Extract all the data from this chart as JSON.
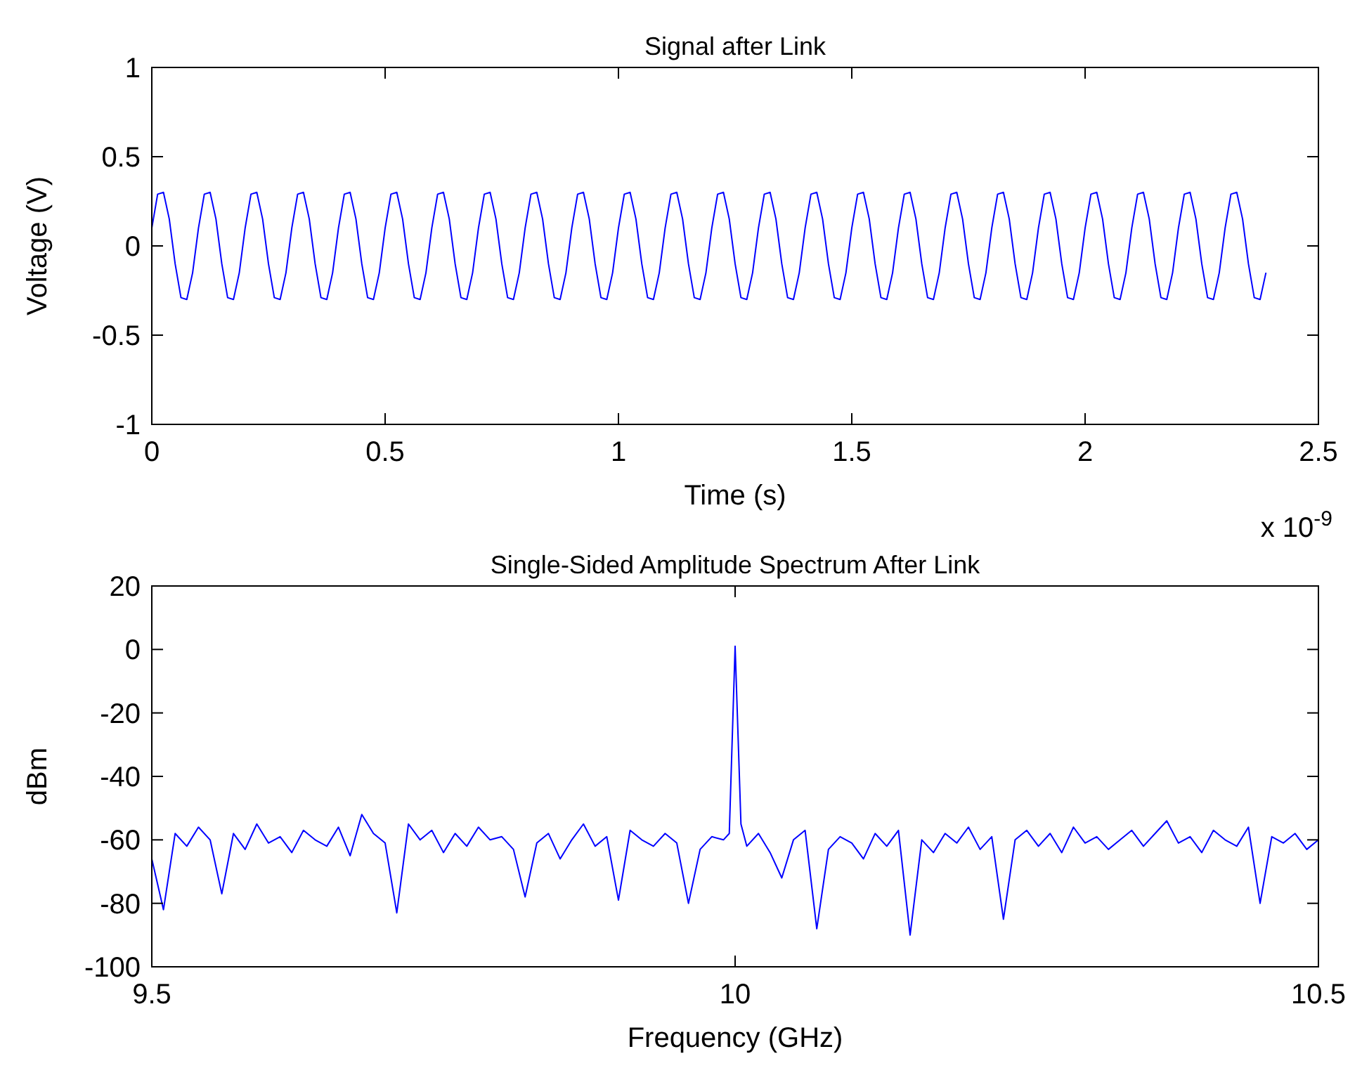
{
  "chart_data": [
    {
      "type": "line",
      "title": "Signal after Link",
      "xlabel": "Time (s)",
      "ylabel": "Voltage (V)",
      "annotations": [
        "x 10$^{-9}$"
      ],
      "x": [
        0,
        0.0125,
        0.025,
        0.0375,
        0.05,
        0.0625,
        0.075,
        0.0875,
        0.1,
        0.1125,
        0.125,
        0.1375,
        0.15,
        0.1625,
        0.175,
        0.1875,
        0.2,
        0.2125,
        0.225,
        0.2375,
        0.25,
        0.2625,
        0.275,
        0.2875,
        0.3,
        0.3125,
        0.325,
        0.3375,
        0.35,
        0.3625,
        0.375,
        0.3875,
        0.4,
        0.4125,
        0.425,
        0.4375,
        0.45,
        0.4625,
        0.475,
        0.4875,
        0.5,
        0.5125,
        0.525,
        0.5375,
        0.55,
        0.5625,
        0.575,
        0.5875,
        0.6,
        0.6125,
        0.625,
        0.6375,
        0.65,
        0.6625,
        0.675,
        0.6875,
        0.7,
        0.7125,
        0.725,
        0.7375,
        0.75,
        0.7625,
        0.775,
        0.7875,
        0.8,
        0.8125,
        0.825,
        0.8375,
        0.85,
        0.8625,
        0.875,
        0.8875,
        0.9,
        0.9125,
        0.925,
        0.9375,
        0.95,
        0.9625,
        0.975,
        0.9875,
        1,
        1.0125,
        1.025,
        1.0375,
        1.05,
        1.0625,
        1.075,
        1.0875,
        1.1,
        1.1125,
        1.125,
        1.1375,
        1.15,
        1.1625,
        1.175,
        1.1875,
        1.2,
        1.2125,
        1.225,
        1.2375,
        1.25,
        1.2625,
        1.275,
        1.2875,
        1.3,
        1.3125,
        1.325,
        1.3375,
        1.35,
        1.3625,
        1.375,
        1.3875,
        1.4,
        1.4125,
        1.425,
        1.4375,
        1.45,
        1.4625,
        1.475,
        1.4875,
        1.5,
        1.5125,
        1.525,
        1.5375,
        1.55,
        1.5625,
        1.575,
        1.5875,
        1.6,
        1.6125,
        1.625,
        1.6375,
        1.65,
        1.6625,
        1.675,
        1.6875,
        1.7,
        1.7125,
        1.725,
        1.7375,
        1.75,
        1.7625,
        1.775,
        1.7875,
        1.8,
        1.8125,
        1.825,
        1.8375,
        1.85,
        1.8625,
        1.875,
        1.8875,
        1.9,
        1.9125,
        1.925,
        1.9375,
        1.95,
        1.9625,
        1.975,
        1.9875,
        2,
        2.0125,
        2.025,
        2.0375,
        2.05,
        2.0625,
        2.075,
        2.0875,
        2.1,
        2.1125,
        2.125,
        2.1375,
        2.15,
        2.1625,
        2.175,
        2.1875,
        2.2,
        2.2125,
        2.225,
        2.2375,
        2.25,
        2.2625,
        2.275,
        2.2875,
        2.3,
        2.3125,
        2.325,
        2.3375,
        2.35,
        2.3625,
        2.375,
        2.3875
      ],
      "series": [
        {
          "color": "#0000ff",
          "values": [
            0.1,
            0.29,
            0.3,
            0.15,
            -0.1,
            -0.29,
            -0.3,
            -0.15,
            0.1,
            0.29,
            0.3,
            0.15,
            -0.1,
            -0.29,
            -0.3,
            -0.15,
            0.1,
            0.29,
            0.3,
            0.15,
            -0.1,
            -0.29,
            -0.3,
            -0.15,
            0.1,
            0.29,
            0.3,
            0.15,
            -0.1,
            -0.29,
            -0.3,
            -0.15,
            0.1,
            0.29,
            0.3,
            0.15,
            -0.1,
            -0.29,
            -0.3,
            -0.15,
            0.1,
            0.29,
            0.3,
            0.15,
            -0.1,
            -0.29,
            -0.3,
            -0.15,
            0.1,
            0.29,
            0.3,
            0.15,
            -0.1,
            -0.29,
            -0.3,
            -0.15,
            0.1,
            0.29,
            0.3,
            0.15,
            -0.1,
            -0.29,
            -0.3,
            -0.15,
            0.1,
            0.29,
            0.3,
            0.15,
            -0.1,
            -0.29,
            -0.3,
            -0.15,
            0.1,
            0.29,
            0.3,
            0.15,
            -0.1,
            -0.29,
            -0.3,
            -0.15,
            0.1,
            0.29,
            0.3,
            0.15,
            -0.1,
            -0.29,
            -0.3,
            -0.15,
            0.1,
            0.29,
            0.3,
            0.15,
            -0.1,
            -0.29,
            -0.3,
            -0.15,
            0.1,
            0.29,
            0.3,
            0.15,
            -0.1,
            -0.29,
            -0.3,
            -0.15,
            0.1,
            0.29,
            0.3,
            0.15,
            -0.1,
            -0.29,
            -0.3,
            -0.15,
            0.1,
            0.29,
            0.3,
            0.15,
            -0.1,
            -0.29,
            -0.3,
            -0.15,
            0.1,
            0.29,
            0.3,
            0.15,
            -0.1,
            -0.29,
            -0.3,
            -0.15,
            0.1,
            0.29,
            0.3,
            0.15,
            -0.1,
            -0.29,
            -0.3,
            -0.15,
            0.1,
            0.29,
            0.3,
            0.15,
            -0.1,
            -0.29,
            -0.3,
            -0.15,
            0.1,
            0.29,
            0.3,
            0.15,
            -0.1,
            -0.29,
            -0.3,
            -0.15,
            0.1,
            0.29,
            0.3,
            0.15,
            -0.1,
            -0.29,
            -0.3,
            -0.15,
            0.1,
            0.29,
            0.3,
            0.15,
            -0.1,
            -0.29,
            -0.3,
            -0.15,
            0.1,
            0.29,
            0.3,
            0.15,
            -0.1,
            -0.29,
            -0.3,
            -0.15,
            0.1,
            0.29,
            0.3,
            0.15,
            -0.1,
            -0.29,
            -0.3,
            -0.15,
            0.1,
            0.29,
            0.3,
            0.15,
            -0.1,
            -0.29,
            -0.3,
            -0.15
          ]
        }
      ],
      "xlim": [
        0,
        2.5
      ],
      "ylim": [
        -1,
        1
      ],
      "xticks": [
        0,
        0.5,
        1,
        1.5,
        2,
        2.5
      ],
      "yticks": [
        -1,
        -0.5,
        0,
        0.5,
        1
      ]
    },
    {
      "type": "line",
      "title": "Single-Sided Amplitude Spectrum After Link",
      "xlabel": "Frequency (GHz)",
      "ylabel": "dBm",
      "x": [
        9.5,
        9.51,
        9.52,
        9.53,
        9.54,
        9.55,
        9.56,
        9.57,
        9.58,
        9.59,
        9.6,
        9.61,
        9.62,
        9.63,
        9.64,
        9.65,
        9.66,
        9.67,
        9.68,
        9.69,
        9.7,
        9.71,
        9.72,
        9.73,
        9.74,
        9.75,
        9.76,
        9.77,
        9.78,
        9.79,
        9.8,
        9.81,
        9.82,
        9.83,
        9.84,
        9.85,
        9.86,
        9.87,
        9.88,
        9.89,
        9.9,
        9.91,
        9.92,
        9.93,
        9.94,
        9.95,
        9.96,
        9.97,
        9.98,
        9.99,
        9.995,
        10,
        10.005,
        10.01,
        10.02,
        10.03,
        10.04,
        10.05,
        10.06,
        10.07,
        10.08,
        10.09,
        10.1,
        10.11,
        10.12,
        10.13,
        10.14,
        10.15,
        10.16,
        10.17,
        10.18,
        10.19,
        10.2,
        10.21,
        10.22,
        10.23,
        10.24,
        10.25,
        10.26,
        10.27,
        10.28,
        10.29,
        10.3,
        10.31,
        10.32,
        10.33,
        10.34,
        10.35,
        10.36,
        10.37,
        10.38,
        10.39,
        10.4,
        10.41,
        10.42,
        10.43,
        10.44,
        10.45,
        10.46,
        10.47,
        10.48,
        10.49,
        10.5
      ],
      "series": [
        {
          "color": "#0000ff",
          "values": [
            -66,
            -82,
            -58,
            -62,
            -56,
            -60,
            -77,
            -58,
            -63,
            -55,
            -61,
            -59,
            -64,
            -57,
            -60,
            -62,
            -56,
            -65,
            -52,
            -58,
            -61,
            -83,
            -55,
            -60,
            -57,
            -64,
            -58,
            -62,
            -56,
            -60,
            -59,
            -63,
            -78,
            -61,
            -58,
            -66,
            -60,
            -55,
            -62,
            -59,
            -79,
            -57,
            -60,
            -62,
            -58,
            -61,
            -80,
            -63,
            -59,
            -60,
            -58,
            1,
            -55,
            -62,
            -58,
            -64,
            -72,
            -60,
            -57,
            -88,
            -63,
            -59,
            -61,
            -66,
            -58,
            -62,
            -57,
            -90,
            -60,
            -64,
            -58,
            -61,
            -56,
            -63,
            -59,
            -85,
            -60,
            -57,
            -62,
            -58,
            -64,
            -56,
            -61,
            -59,
            -63,
            -60,
            -57,
            -62,
            -58,
            -54,
            -61,
            -59,
            -64,
            -57,
            -60,
            -62,
            -56,
            -80,
            -59,
            -61,
            -58,
            -63,
            -60
          ]
        }
      ],
      "xlim": [
        9.5,
        10.5
      ],
      "ylim": [
        -100,
        20
      ],
      "xticks": [
        9.5,
        10,
        10.5
      ],
      "yticks": [
        -100,
        -80,
        -60,
        -40,
        -20,
        0,
        20
      ]
    }
  ]
}
